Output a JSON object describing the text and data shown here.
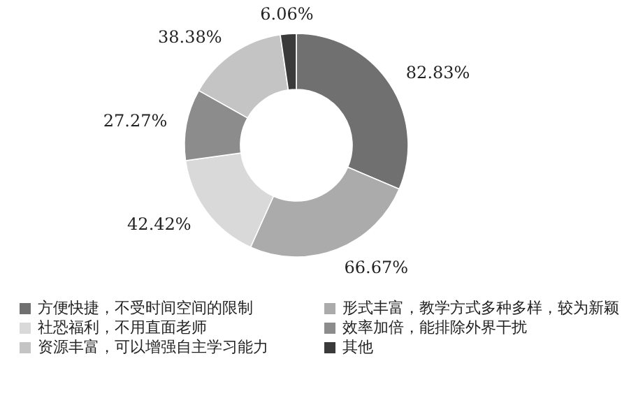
{
  "chart_data": {
    "type": "donut",
    "categories": [
      "方便快捷，不受时间空间的限制",
      "形式丰富，教学方式多种多样，较为新颖",
      "社恐福利，不用直面老师",
      "效率加倍，能排除外界干扰",
      "资源丰富，可以增强自主学习能力",
      "其他"
    ],
    "values": [
      82.83,
      66.67,
      42.42,
      27.27,
      38.38,
      6.06
    ],
    "colors": [
      "#707070",
      "#ababab",
      "#d9d9d9",
      "#8c8c8c",
      "#c4c4c4",
      "#3a3a3a"
    ],
    "value_labels": [
      "82.83%",
      "66.67%",
      "42.42%",
      "27.27%",
      "38.38%",
      "6.06%"
    ],
    "legend": "bottom"
  }
}
